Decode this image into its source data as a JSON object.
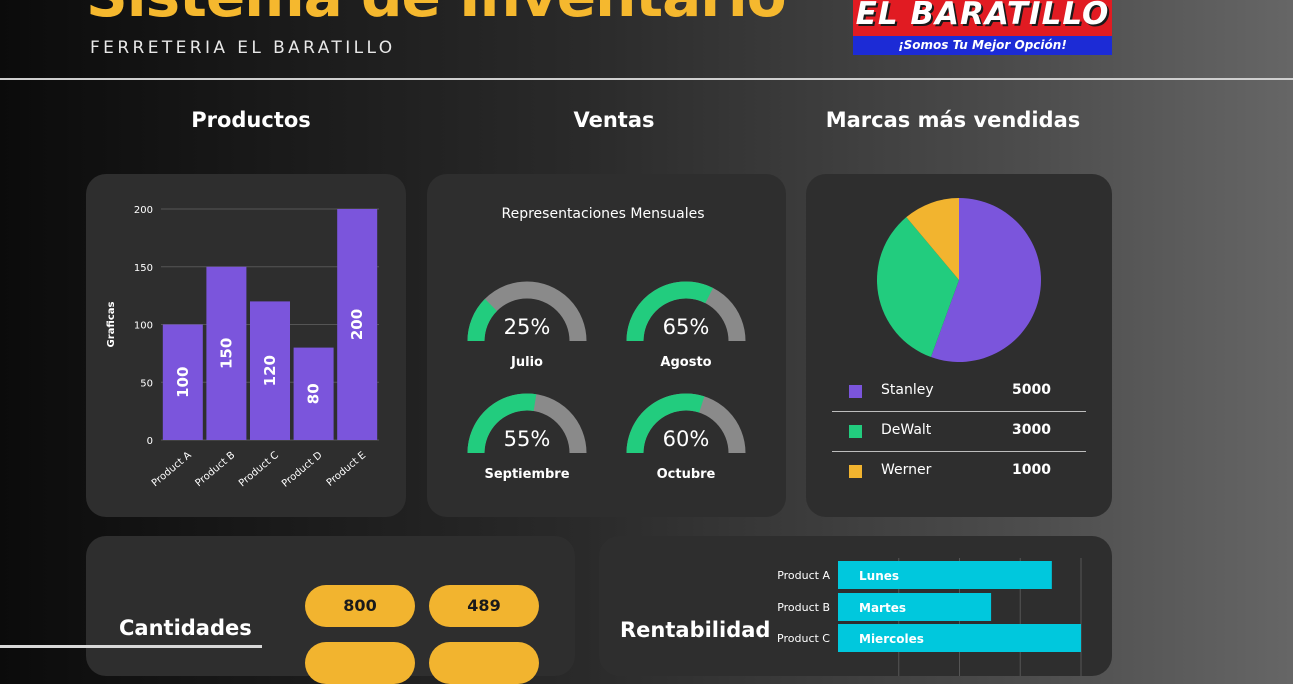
{
  "header": {
    "title": "Sistema de Inventario",
    "subtitle": "FERRETERIA EL BARATILLO",
    "logo_name": "EL BARATILLO",
    "logo_tagline": "¡Somos Tu Mejor Opción!"
  },
  "sections": {
    "productos": "Productos",
    "ventas": "Ventas",
    "marcas": "Marcas más vendidas",
    "cantidades": "Cantidades",
    "rentabilidad": "Rentabilidad"
  },
  "colors": {
    "purple": "#7b55dc",
    "green": "#22cc7e",
    "yellow": "#f2b42f",
    "cyan": "#00c8dd",
    "gray": "#8a8a8a"
  },
  "chart_data": [
    {
      "type": "bar",
      "orientation": "vertical",
      "categories": [
        "Product A",
        "Product B",
        "Product C",
        "Product D",
        "Product E"
      ],
      "values": [
        100,
        150,
        120,
        80,
        200
      ],
      "ylabel": "Graficas",
      "ylim": [
        0,
        200
      ],
      "yticks": [
        0,
        50,
        100,
        150,
        200
      ],
      "grid": true,
      "data_labels": true
    },
    {
      "type": "gauge",
      "title": "Representaciones Mensuales",
      "items": [
        {
          "label": "Julio",
          "value": 25,
          "display": "25%"
        },
        {
          "label": "Agosto",
          "value": 65,
          "display": "65%"
        },
        {
          "label": "Septiembre",
          "value": 55,
          "display": "55%"
        },
        {
          "label": "Octubre",
          "value": 60,
          "display": "60%"
        }
      ]
    },
    {
      "type": "pie",
      "slices": [
        {
          "name": "Stanley",
          "value": 5000
        },
        {
          "name": "DeWalt",
          "value": 3000
        },
        {
          "name": "Werner",
          "value": 1000
        }
      ],
      "legend_values": [
        "5000",
        "3000",
        "1000"
      ]
    },
    {
      "type": "bar",
      "orientation": "horizontal",
      "categories": [
        "Product A",
        "Product B",
        "Product C"
      ],
      "bar_labels": [
        "Lunes",
        "Martes",
        "Miercoles"
      ],
      "values": [
        88,
        63,
        100
      ],
      "xlim": [
        0,
        100
      ],
      "grid": true
    }
  ],
  "cantidades": {
    "values": [
      "800",
      "489"
    ]
  }
}
